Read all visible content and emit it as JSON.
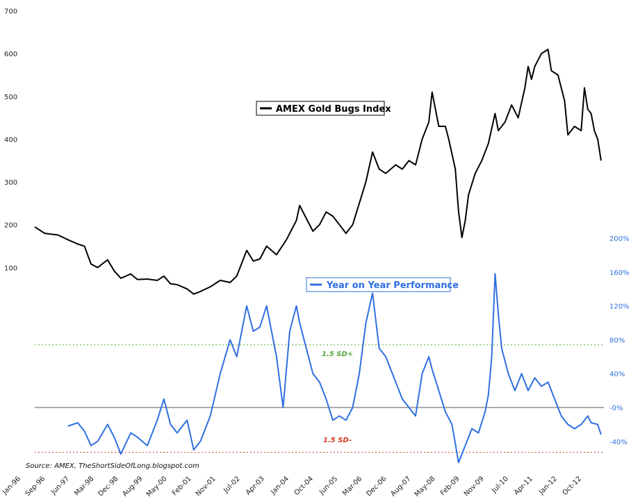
{
  "chart_data": {
    "type": "line",
    "x_ticks": [
      "Jan-96",
      "Sep-96",
      "Jun-97",
      "Mar-98",
      "Dec-98",
      "Aug-99",
      "May-00",
      "Feb-01",
      "Nov-01",
      "Jul-02",
      "Apr-03",
      "Jan-04",
      "Oct-04",
      "Jun-05",
      "Mar-06",
      "Dec-06",
      "Aug-07",
      "May-08",
      "Feb-09",
      "Nov-09",
      "Jul-10",
      "Apr-11",
      "Jan-12",
      "Oct-12"
    ],
    "left_axis": {
      "ticks": [
        "100",
        "200",
        "300",
        "400",
        "500",
        "600",
        "700"
      ],
      "min": 0,
      "max": 700
    },
    "right_axis": {
      "ticks": [
        "-40%",
        "-0%",
        "40%",
        "80%",
        "120%",
        "160%",
        "200%"
      ],
      "min": -60,
      "max": 260
    },
    "series": [
      {
        "name": "AMEX Gold Bugs Index",
        "color": "#000000",
        "axis": "left",
        "points": [
          [
            1996.0,
            195
          ],
          [
            1996.3,
            180
          ],
          [
            1996.7,
            176
          ],
          [
            1997.0,
            165
          ],
          [
            1997.3,
            155
          ],
          [
            1997.5,
            150
          ],
          [
            1997.7,
            108
          ],
          [
            1997.9,
            100
          ],
          [
            1998.2,
            118
          ],
          [
            1998.4,
            92
          ],
          [
            1998.6,
            75
          ],
          [
            1998.9,
            85
          ],
          [
            1999.1,
            72
          ],
          [
            1999.4,
            73
          ],
          [
            1999.7,
            70
          ],
          [
            1999.9,
            80
          ],
          [
            2000.1,
            62
          ],
          [
            2000.3,
            60
          ],
          [
            2000.6,
            50
          ],
          [
            2000.8,
            38
          ],
          [
            2001.0,
            44
          ],
          [
            2001.3,
            55
          ],
          [
            2001.6,
            70
          ],
          [
            2001.9,
            65
          ],
          [
            2002.1,
            80
          ],
          [
            2002.4,
            140
          ],
          [
            2002.6,
            115
          ],
          [
            2002.8,
            120
          ],
          [
            2003.0,
            150
          ],
          [
            2003.3,
            130
          ],
          [
            2003.6,
            165
          ],
          [
            2003.9,
            210
          ],
          [
            2004.0,
            245
          ],
          [
            2004.2,
            215
          ],
          [
            2004.4,
            185
          ],
          [
            2004.6,
            200
          ],
          [
            2004.8,
            230
          ],
          [
            2005.0,
            220
          ],
          [
            2005.2,
            200
          ],
          [
            2005.4,
            180
          ],
          [
            2005.6,
            200
          ],
          [
            2005.8,
            250
          ],
          [
            2006.0,
            300
          ],
          [
            2006.2,
            370
          ],
          [
            2006.4,
            330
          ],
          [
            2006.6,
            320
          ],
          [
            2006.9,
            340
          ],
          [
            2007.1,
            330
          ],
          [
            2007.3,
            350
          ],
          [
            2007.5,
            340
          ],
          [
            2007.7,
            400
          ],
          [
            2007.9,
            440
          ],
          [
            2008.0,
            510
          ],
          [
            2008.2,
            430
          ],
          [
            2008.4,
            430
          ],
          [
            2008.5,
            400
          ],
          [
            2008.7,
            330
          ],
          [
            2008.8,
            230
          ],
          [
            2008.9,
            170
          ],
          [
            2009.0,
            210
          ],
          [
            2009.1,
            270
          ],
          [
            2009.3,
            320
          ],
          [
            2009.5,
            350
          ],
          [
            2009.7,
            390
          ],
          [
            2009.9,
            460
          ],
          [
            2010.0,
            420
          ],
          [
            2010.2,
            440
          ],
          [
            2010.4,
            480
          ],
          [
            2010.6,
            450
          ],
          [
            2010.8,
            520
          ],
          [
            2010.9,
            570
          ],
          [
            2011.0,
            540
          ],
          [
            2011.1,
            570
          ],
          [
            2011.3,
            600
          ],
          [
            2011.5,
            610
          ],
          [
            2011.6,
            560
          ],
          [
            2011.8,
            550
          ],
          [
            2012.0,
            490
          ],
          [
            2012.1,
            410
          ],
          [
            2012.3,
            430
          ],
          [
            2012.5,
            420
          ],
          [
            2012.6,
            520
          ],
          [
            2012.7,
            470
          ],
          [
            2012.8,
            460
          ],
          [
            2012.9,
            420
          ],
          [
            2013.0,
            400
          ],
          [
            2013.1,
            350
          ]
        ]
      },
      {
        "name": "Year on Year Performance",
        "color": "#2f6fe0",
        "axis": "right",
        "points": [
          [
            1997.0,
            -22
          ],
          [
            1997.3,
            -18
          ],
          [
            1997.5,
            -28
          ],
          [
            1997.7,
            -45
          ],
          [
            1997.9,
            -40
          ],
          [
            1998.2,
            -20
          ],
          [
            1998.4,
            -35
          ],
          [
            1998.6,
            -55
          ],
          [
            1998.9,
            -30
          ],
          [
            1999.1,
            -35
          ],
          [
            1999.4,
            -45
          ],
          [
            1999.7,
            -15
          ],
          [
            1999.9,
            10
          ],
          [
            2000.1,
            -20
          ],
          [
            2000.3,
            -30
          ],
          [
            2000.6,
            -15
          ],
          [
            2000.8,
            -50
          ],
          [
            2001.0,
            -40
          ],
          [
            2001.3,
            -10
          ],
          [
            2001.6,
            40
          ],
          [
            2001.9,
            80
          ],
          [
            2002.1,
            60
          ],
          [
            2002.4,
            120
          ],
          [
            2002.6,
            90
          ],
          [
            2002.8,
            95
          ],
          [
            2003.0,
            120
          ],
          [
            2003.3,
            60
          ],
          [
            2003.5,
            0
          ],
          [
            2003.7,
            90
          ],
          [
            2003.9,
            120
          ],
          [
            2004.0,
            100
          ],
          [
            2004.2,
            70
          ],
          [
            2004.4,
            40
          ],
          [
            2004.6,
            30
          ],
          [
            2004.8,
            10
          ],
          [
            2005.0,
            -15
          ],
          [
            2005.2,
            -10
          ],
          [
            2005.4,
            -15
          ],
          [
            2005.6,
            0
          ],
          [
            2005.8,
            40
          ],
          [
            2006.0,
            100
          ],
          [
            2006.2,
            135
          ],
          [
            2006.4,
            70
          ],
          [
            2006.6,
            60
          ],
          [
            2006.9,
            30
          ],
          [
            2007.1,
            10
          ],
          [
            2007.3,
            0
          ],
          [
            2007.5,
            -10
          ],
          [
            2007.7,
            40
          ],
          [
            2007.9,
            60
          ],
          [
            2008.0,
            45
          ],
          [
            2008.2,
            20
          ],
          [
            2008.4,
            -5
          ],
          [
            2008.6,
            -20
          ],
          [
            2008.8,
            -65
          ],
          [
            2009.0,
            -45
          ],
          [
            2009.2,
            -25
          ],
          [
            2009.4,
            -30
          ],
          [
            2009.6,
            -5
          ],
          [
            2009.7,
            15
          ],
          [
            2009.8,
            60
          ],
          [
            2009.9,
            158
          ],
          [
            2010.0,
            110
          ],
          [
            2010.1,
            70
          ],
          [
            2010.3,
            40
          ],
          [
            2010.5,
            20
          ],
          [
            2010.7,
            40
          ],
          [
            2010.9,
            20
          ],
          [
            2011.1,
            35
          ],
          [
            2011.3,
            25
          ],
          [
            2011.5,
            30
          ],
          [
            2011.7,
            10
          ],
          [
            2011.9,
            -10
          ],
          [
            2012.1,
            -20
          ],
          [
            2012.3,
            -25
          ],
          [
            2012.5,
            -20
          ],
          [
            2012.7,
            -10
          ],
          [
            2012.8,
            -18
          ],
          [
            2013.0,
            -20
          ],
          [
            2013.1,
            -32
          ]
        ]
      }
    ],
    "reference_lines": [
      {
        "label": "1.5 SD+",
        "value": 74,
        "color": "#55a83a",
        "style": "dotted"
      },
      {
        "label": "",
        "value": 0,
        "color": "#555555",
        "style": "solid"
      },
      {
        "label": "1.5 SD-",
        "value": -53,
        "color": "#d23a2a",
        "style": "dotted"
      }
    ],
    "legend_placement": "inside",
    "grid": false,
    "source": "Source: AMEX, TheShortSideOfLong.blogspot.com"
  }
}
